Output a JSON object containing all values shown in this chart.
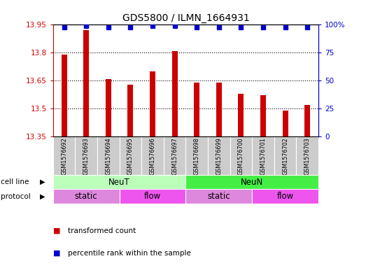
{
  "title": "GDS5800 / ILMN_1664931",
  "samples": [
    "GSM1576692",
    "GSM1576693",
    "GSM1576694",
    "GSM1576695",
    "GSM1576696",
    "GSM1576697",
    "GSM1576698",
    "GSM1576699",
    "GSM1576700",
    "GSM1576701",
    "GSM1576702",
    "GSM1576703"
  ],
  "bar_values": [
    13.79,
    13.92,
    13.66,
    13.63,
    13.7,
    13.81,
    13.64,
    13.64,
    13.58,
    13.57,
    13.49,
    13.52
  ],
  "percentile_values": [
    98,
    99,
    98,
    98,
    99,
    99,
    98,
    98,
    98,
    98,
    98,
    98
  ],
  "bar_color": "#cc0000",
  "percentile_color": "#0000cc",
  "ylim_left": [
    13.35,
    13.95
  ],
  "ylim_right": [
    0,
    100
  ],
  "yticks_left": [
    13.35,
    13.5,
    13.65,
    13.8,
    13.95
  ],
  "yticks_right": [
    0,
    25,
    50,
    75,
    100
  ],
  "ytick_labels_right": [
    "0",
    "25",
    "50",
    "75",
    "100%"
  ],
  "cell_line_labels": [
    {
      "label": "NeuT",
      "start": 0,
      "end": 6,
      "color": "#bbffbb"
    },
    {
      "label": "NeuN",
      "start": 6,
      "end": 12,
      "color": "#44ee44"
    }
  ],
  "protocol_labels": [
    {
      "label": "static",
      "start": 0,
      "end": 3,
      "color": "#dd88dd"
    },
    {
      "label": "flow",
      "start": 3,
      "end": 6,
      "color": "#ee55ee"
    },
    {
      "label": "static",
      "start": 6,
      "end": 9,
      "color": "#dd88dd"
    },
    {
      "label": "flow",
      "start": 9,
      "end": 12,
      "color": "#ee55ee"
    }
  ],
  "legend_items": [
    {
      "label": "transformed count",
      "color": "#cc0000"
    },
    {
      "label": "percentile rank within the sample",
      "color": "#0000cc"
    }
  ],
  "xticklabel_bg": "#cccccc",
  "bar_width": 0.25
}
